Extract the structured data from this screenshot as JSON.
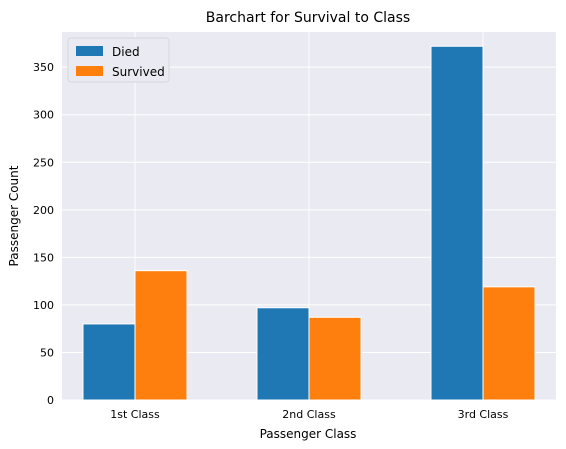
{
  "chart_data": {
    "type": "bar",
    "title": "Barchart for Survival to Class",
    "xlabel": "Passenger Class",
    "ylabel": "Passenger Count",
    "categories": [
      "1st Class",
      "2nd Class",
      "3rd Class"
    ],
    "series": [
      {
        "name": "Died",
        "values": [
          80,
          97,
          372
        ],
        "color": "#1f77b4"
      },
      {
        "name": "Survived",
        "values": [
          136,
          87,
          119
        ],
        "color": "#ff7f0e"
      }
    ],
    "ylim": [
      0,
      387
    ],
    "yticks": [
      0,
      50,
      100,
      150,
      200,
      250,
      300,
      350
    ],
    "grid": true,
    "legend_position": "top-left",
    "background_color": "#eaeaf2",
    "grid_color": "#ffffff"
  }
}
